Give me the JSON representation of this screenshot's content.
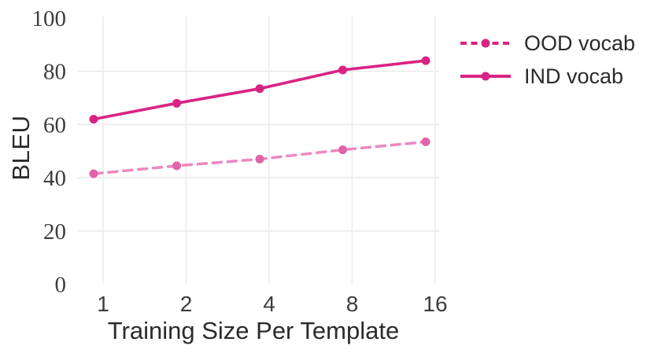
{
  "chart_data": {
    "type": "line",
    "title": "",
    "xlabel": "Training Size Per Template",
    "ylabel": "BLEU",
    "x_scale": "log2",
    "x": [
      1,
      2,
      4,
      8,
      16
    ],
    "xticklabels": [
      "1",
      "2",
      "4",
      "8",
      "16"
    ],
    "yticks": [
      0,
      20,
      40,
      60,
      80,
      100
    ],
    "ylim": [
      0,
      100
    ],
    "grid": true,
    "legend_position": "upper-right-outside",
    "series": [
      {
        "name": "OOD vocab",
        "values": [
          41.5,
          44.5,
          47,
          50.5,
          53.5
        ],
        "line_style": "dashed",
        "color": "#ec8abf",
        "marker_color": "#e263a8",
        "legend_color": "#d92383"
      },
      {
        "name": "IND vocab",
        "values": [
          62,
          68,
          73.5,
          80.5,
          84
        ],
        "line_style": "solid",
        "color": "#d92383",
        "marker_color": "#d92383",
        "legend_color": "#d92383"
      }
    ],
    "colors": {
      "grid": "#ececec",
      "tick_text": "#3d3d3d",
      "title_text": "#2b2b2b",
      "background": "#ffffff"
    }
  }
}
